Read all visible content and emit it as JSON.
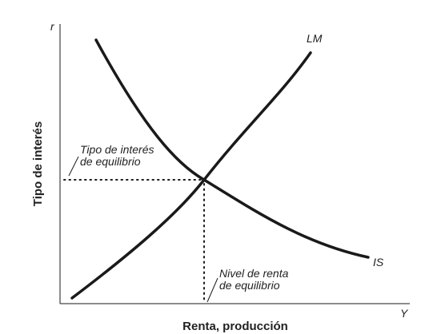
{
  "axes": {
    "y_symbol": "r",
    "x_symbol": "Y",
    "y_title": "Tipo de interés",
    "x_title": "Renta, producción"
  },
  "curves": {
    "lm": "LM",
    "is": "IS"
  },
  "annotations": [
    {
      "lines": [
        "Tipo de interés",
        "de equilibrio"
      ]
    },
    {
      "lines": [
        "Nivel de renta",
        "de equilibrio"
      ]
    }
  ]
}
